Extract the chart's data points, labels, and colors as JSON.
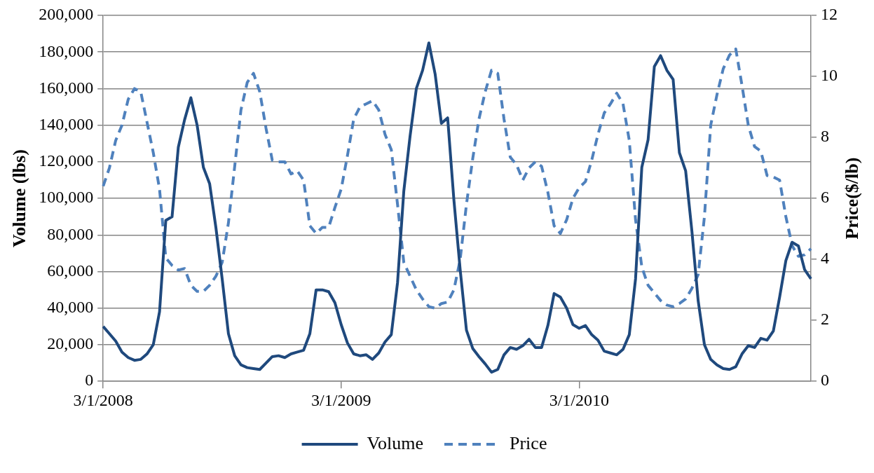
{
  "chart_data": {
    "type": "line",
    "ylabel": "Volume (lbs)",
    "y2label": "Price($/lb)",
    "categories": [
      "3/1/2008",
      null,
      null,
      null,
      null,
      null,
      null,
      null,
      null,
      null,
      null,
      null,
      null,
      null,
      null,
      null,
      null,
      null,
      null,
      null,
      null,
      null,
      null,
      null,
      null,
      null,
      null,
      null,
      null,
      null,
      null,
      null,
      null,
      null,
      null,
      null,
      null,
      null,
      "3/1/2009",
      null,
      null,
      null,
      null,
      null,
      null,
      null,
      null,
      null,
      null,
      null,
      null,
      null,
      null,
      null,
      null,
      null,
      null,
      null,
      null,
      null,
      null,
      null,
      null,
      null,
      null,
      null,
      null,
      null,
      null,
      null,
      null,
      null,
      null,
      null,
      null,
      null,
      "3/1/2010",
      null,
      null,
      null,
      null,
      null,
      null,
      null,
      null,
      null,
      null,
      null,
      null,
      null,
      null,
      null,
      null,
      null,
      null,
      null,
      null,
      null,
      null,
      null,
      null,
      null,
      null,
      null,
      null,
      null,
      null,
      null,
      null,
      null,
      null,
      null,
      null,
      null
    ],
    "series": [
      {
        "name": "Volume",
        "color": "#1f497d",
        "line_style": "solid",
        "values": [
          30000,
          26000,
          22000,
          16000,
          13000,
          11500,
          12000,
          15000,
          20000,
          38000,
          88000,
          90000,
          128000,
          143000,
          155000,
          140000,
          117000,
          108000,
          84000,
          56000,
          26000,
          14000,
          9000,
          7500,
          7000,
          6500,
          10000,
          13500,
          14000,
          13000,
          15000,
          16000,
          17000,
          26000,
          50000,
          50000,
          49000,
          43000,
          31000,
          21000,
          15000,
          14000,
          14500,
          12000,
          15500,
          21500,
          25500,
          54000,
          104000,
          134000,
          160000,
          170000,
          185000,
          168000,
          141000,
          144000,
          99000,
          61000,
          28000,
          18000,
          13500,
          9500,
          5000,
          6500,
          14500,
          18500,
          17500,
          19500,
          23000,
          18500,
          18500,
          30500,
          48000,
          46000,
          40000,
          31000,
          29000,
          30500,
          25500,
          22500,
          16500,
          15500,
          14500,
          17500,
          25500,
          56000,
          117000,
          132000,
          172000,
          178000,
          170000,
          165000,
          125000,
          115000,
          82000,
          44000,
          20000,
          12000,
          9000,
          7000,
          6500,
          8000,
          15000,
          19500,
          18500,
          23500,
          22500,
          27500,
          46000,
          66000,
          76000,
          74000,
          61000,
          56000
        ]
      },
      {
        "name": "Price",
        "color": "#4f81bd",
        "line_style": "dashed",
        "axis": "y2",
        "values": [
          6.4,
          7.0,
          7.9,
          8.4,
          9.25,
          9.6,
          9.5,
          8.5,
          7.5,
          6.3,
          4.05,
          3.8,
          3.65,
          3.7,
          3.15,
          2.95,
          2.95,
          3.15,
          3.45,
          3.9,
          5.2,
          7.05,
          8.9,
          9.8,
          10.1,
          9.5,
          8.3,
          7.25,
          7.2,
          7.2,
          6.8,
          6.9,
          6.6,
          5.1,
          4.85,
          5.05,
          5.05,
          5.7,
          6.3,
          7.4,
          8.6,
          9.0,
          9.1,
          9.2,
          8.9,
          8.1,
          7.6,
          5.8,
          3.9,
          3.45,
          3.0,
          2.7,
          2.45,
          2.4,
          2.55,
          2.6,
          3.0,
          4.0,
          5.8,
          7.3,
          8.6,
          9.5,
          10.2,
          10.1,
          8.6,
          7.35,
          7.1,
          6.6,
          7.0,
          7.2,
          7.05,
          6.2,
          5.1,
          4.85,
          5.3,
          6.0,
          6.35,
          6.55,
          7.25,
          8.1,
          8.8,
          9.1,
          9.45,
          9.1,
          7.9,
          5.3,
          3.75,
          3.15,
          2.9,
          2.65,
          2.5,
          2.45,
          2.55,
          2.7,
          3.05,
          3.5,
          5.4,
          8.4,
          9.4,
          10.25,
          10.7,
          10.9,
          9.7,
          8.4,
          7.7,
          7.55,
          6.75,
          6.7,
          6.6,
          5.4,
          4.45,
          4.1,
          4.15,
          4.35
        ]
      }
    ],
    "ylim": [
      0,
      200000
    ],
    "yticks": [
      {
        "value": 0,
        "label": "0"
      },
      {
        "value": 20000,
        "label": "20,000"
      },
      {
        "value": 40000,
        "label": "40,000"
      },
      {
        "value": 60000,
        "label": "60,000"
      },
      {
        "value": 80000,
        "label": "80,000"
      },
      {
        "value": 100000,
        "label": "100,000"
      },
      {
        "value": 120000,
        "label": "120,000"
      },
      {
        "value": 140000,
        "label": "140,000"
      },
      {
        "value": 160000,
        "label": "160,000"
      },
      {
        "value": 180000,
        "label": "180,000"
      },
      {
        "value": 200000,
        "label": "200,000"
      }
    ],
    "y2lim": [
      0,
      12
    ],
    "y2ticks": [
      0,
      2,
      4,
      6,
      8,
      10,
      12
    ],
    "grid": "y",
    "legend": "bottom",
    "marker": "none"
  }
}
